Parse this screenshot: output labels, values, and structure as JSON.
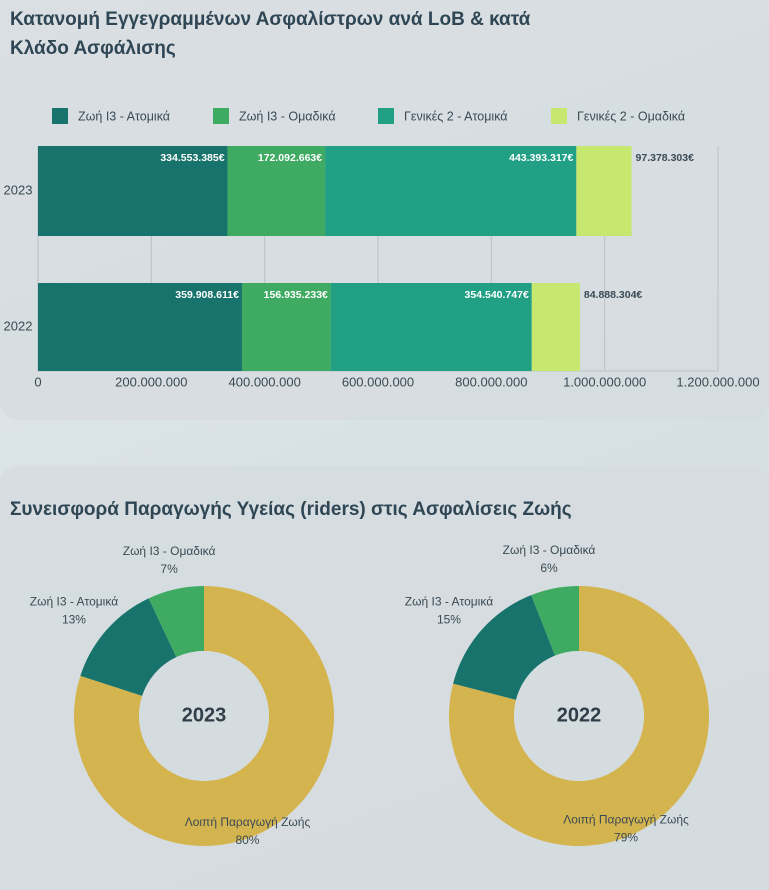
{
  "chart_data": [
    {
      "type": "bar",
      "orientation": "horizontal",
      "stacked": true,
      "title": "Κατανομή Εγγεγραμμένων Ασφαλίστρων ανά LoB & κατά Κλάδο Ασφάλισης",
      "categories": [
        "2023",
        "2022"
      ],
      "series": [
        {
          "name": "Ζωή Ι3 - Ατομικά",
          "color": "#17736b",
          "values": [
            334553385,
            359908611
          ],
          "value_labels": [
            "334.553.385€",
            "359.908.611€"
          ]
        },
        {
          "name": "Ζωή Ι3 - Ομαδικά",
          "color": "#3eaa62",
          "values": [
            172092663,
            156935233
          ],
          "value_labels": [
            "172.092.663€",
            "156.935.233€"
          ]
        },
        {
          "name": "Γενικές 2 - Ατομικά",
          "color": "#22a085",
          "values": [
            443393317,
            354540747
          ],
          "value_labels": [
            "443.393.317€",
            "354.540.747€"
          ]
        },
        {
          "name": "Γενικές 2 - Ομαδικά",
          "color": "#c6e86e",
          "values": [
            97378303,
            84888304
          ],
          "value_labels": [
            "97.378.303€",
            "84.888.304€"
          ]
        }
      ],
      "xlim": [
        0,
        1200000000
      ],
      "xticks": [
        0,
        {
          "value": 200000000,
          "label": "200.000.000"
        },
        {
          "value": 400000000,
          "label": "400.000.000"
        },
        {
          "value": 600000000,
          "label": "600.000.000"
        },
        {
          "value": 800000000,
          "label": "800.000.000"
        },
        {
          "value": 1000000000,
          "label": "1.000.000.000"
        },
        {
          "value": 1200000000,
          "label": "1.200.000.000"
        }
      ],
      "grid": true,
      "legend": "top"
    },
    {
      "type": "donut",
      "title": "Συνεισφορά Παραγωγής Υγείας (riders) στις Ασφαλίσεις Ζωής",
      "center_label": "2023",
      "categories": [
        "Λοιπή Παραγωγή Ζωής",
        "Ζωή Ι3 - Ατομικά",
        "Ζωή Ι3 - Ομαδικά"
      ],
      "values": [
        80,
        13,
        7
      ],
      "value_labels": [
        "80%",
        "13%",
        "7%"
      ],
      "colors": [
        "#d4b44e",
        "#17736b",
        "#3eaa62"
      ]
    },
    {
      "type": "donut",
      "center_label": "2022",
      "categories": [
        "Λοιπή Παραγωγή Ζωής",
        "Ζωή Ι3 - Ατομικά",
        "Ζωή Ι3 - Ομαδικά"
      ],
      "values": [
        79,
        15,
        6
      ],
      "value_labels": [
        "79%",
        "15%",
        "6%"
      ],
      "colors": [
        "#d4b44e",
        "#17736b",
        "#3eaa62"
      ]
    }
  ]
}
